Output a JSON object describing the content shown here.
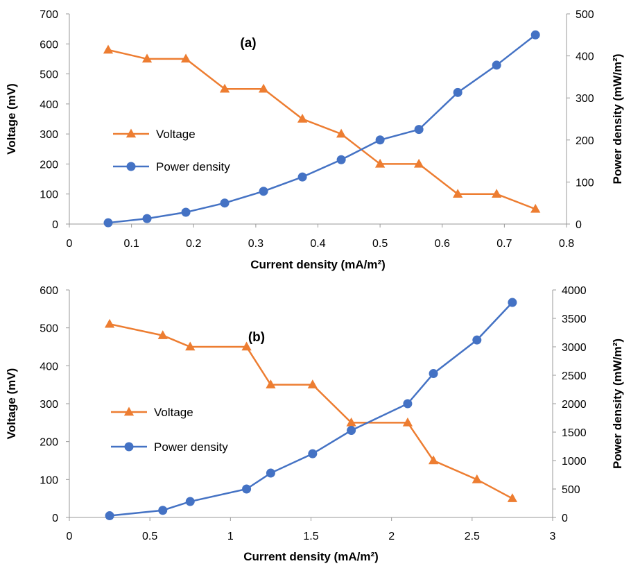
{
  "chart_data": [
    {
      "type": "line",
      "panel_label": "(a)",
      "xlabel": "Current density (mA/m²)",
      "ylabel": "Voltage (mV)",
      "y2label": "Power density (mW/m²)",
      "xlim": [
        0,
        0.8
      ],
      "ylim": [
        0,
        700
      ],
      "y2lim": [
        0,
        500
      ],
      "xticks": [
        "0",
        "0.1",
        "0.2",
        "0.3",
        "0.4",
        "0.5",
        "0.6",
        "0.7",
        "0.8"
      ],
      "yticks": [
        "0",
        "100",
        "200",
        "300",
        "400",
        "500",
        "600",
        "700"
      ],
      "y2ticks": [
        "0",
        "100",
        "200",
        "300",
        "400",
        "500"
      ],
      "legend_position": "left-middle",
      "series": [
        {
          "name": "Voltage",
          "axis": "left",
          "marker": "triangle",
          "color": "#ED7D31",
          "x": [
            0.0625,
            0.125,
            0.1875,
            0.25,
            0.3125,
            0.375,
            0.4375,
            0.5,
            0.5625,
            0.625,
            0.6875,
            0.75
          ],
          "y": [
            580,
            550,
            550,
            450,
            450,
            350,
            300,
            200,
            200,
            100,
            100,
            50
          ]
        },
        {
          "name": "Power density",
          "axis": "right",
          "marker": "circle",
          "color": "#4472C4",
          "x": [
            0.0625,
            0.125,
            0.1875,
            0.25,
            0.3125,
            0.375,
            0.4375,
            0.5,
            0.5625,
            0.625,
            0.6875,
            0.75
          ],
          "y": [
            3,
            13,
            28,
            50,
            78,
            112,
            153,
            200,
            225,
            313,
            378,
            450
          ]
        }
      ]
    },
    {
      "type": "line",
      "panel_label": "(b)",
      "xlabel": "Current density (mA/m²)",
      "ylabel": "Voltage (mV)",
      "y2label": "Power density (mW/m²)",
      "xlim": [
        0,
        3
      ],
      "ylim": [
        0,
        600
      ],
      "y2lim": [
        0,
        4000
      ],
      "xticks": [
        "0",
        "0.5",
        "1",
        "1.5",
        "2",
        "2.5",
        "3"
      ],
      "yticks": [
        "0",
        "100",
        "200",
        "300",
        "400",
        "500",
        "600"
      ],
      "y2ticks": [
        "0",
        "500",
        "1000",
        "1500",
        "2000",
        "2500",
        "3000",
        "3500",
        "4000"
      ],
      "legend_position": "left-middle",
      "series": [
        {
          "name": "Voltage",
          "axis": "left",
          "marker": "triangle",
          "color": "#ED7D31",
          "x": [
            0.25,
            0.58,
            0.75,
            1.1,
            1.25,
            1.51,
            1.75,
            2.1,
            2.26,
            2.53,
            2.75
          ],
          "y": [
            510,
            480,
            450,
            450,
            350,
            350,
            250,
            250,
            150,
            100,
            50
          ]
        },
        {
          "name": "Power density",
          "axis": "right",
          "marker": "circle",
          "color": "#4472C4",
          "x": [
            0.25,
            0.58,
            0.75,
            1.1,
            1.25,
            1.51,
            1.75,
            2.1,
            2.26,
            2.53,
            2.75
          ],
          "y": [
            30,
            125,
            280,
            500,
            780,
            1120,
            1530,
            2000,
            2530,
            3120,
            3780
          ]
        }
      ]
    }
  ]
}
